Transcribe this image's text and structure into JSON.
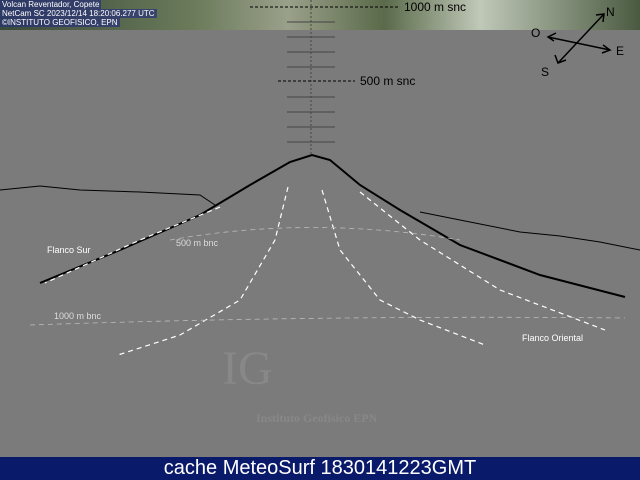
{
  "caption": {
    "line1": "Volcan Reventador, Copete",
    "line2": "NetCam SC 2023/12/14 18:20:06.277 UTC",
    "line3": "©INSTITUTO GEOFISICO, EPN"
  },
  "altitudes": {
    "top": "1000 m snc",
    "mid": "500 m snc",
    "below1": "500 m bnc",
    "below2": "1000 m bnc"
  },
  "compass": {
    "n": "N",
    "o": "O",
    "e": "E",
    "s": "S"
  },
  "flanks": {
    "south": "Flanco Sur",
    "east": "Flanco Oriental"
  },
  "watermark": {
    "logo": "IG",
    "name": "Instituto Geofísico EPN"
  },
  "footer": "cache MeteoSurf 1830141223GMT"
}
